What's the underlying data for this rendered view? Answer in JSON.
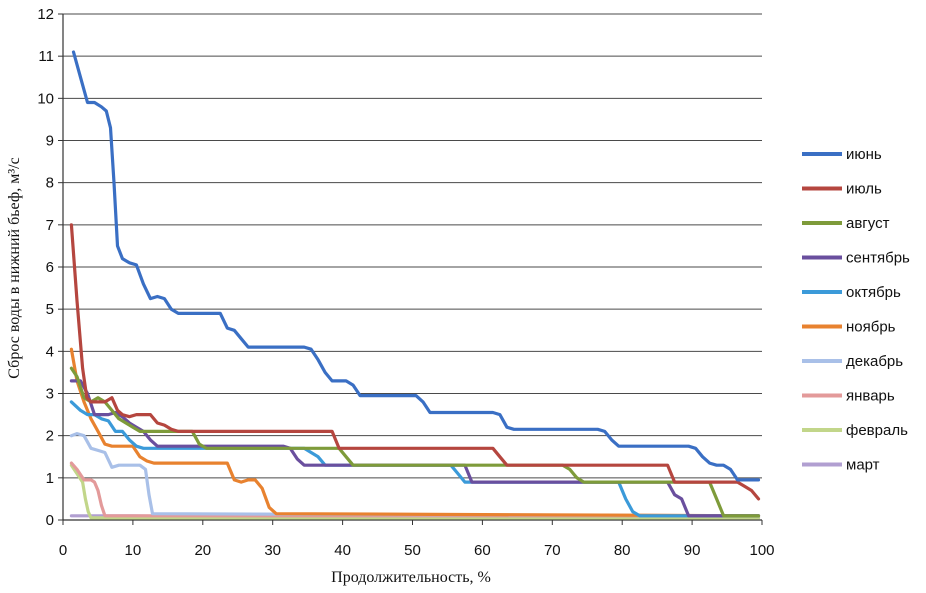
{
  "chart_data": {
    "type": "line",
    "xlabel": "Продолжительность, %",
    "ylabel": "Сброс воды в нижний бьеф, м³/с",
    "xlim": [
      0,
      100
    ],
    "ylim": [
      0,
      12
    ],
    "xticks": [
      0,
      10,
      20,
      30,
      40,
      50,
      60,
      70,
      80,
      90,
      100
    ],
    "yticks": [
      0,
      1,
      2,
      3,
      4,
      5,
      6,
      7,
      8,
      9,
      10,
      11,
      12
    ],
    "grid": "horizontal",
    "legend_position": "right",
    "series": [
      {
        "name": "июнь",
        "color": "#3a6fc4",
        "x": [
          1.5,
          2.5,
          3.5,
          4.5,
          5.5,
          6.2,
          6.8,
          7.3,
          7.8,
          8.5,
          9.5,
          10.5,
          11.5,
          12.5,
          13.5,
          14.5,
          15.5,
          16.5,
          17.5,
          18.5,
          19.5,
          20.5,
          21.5,
          22.5,
          23.5,
          24.5,
          25.5,
          26.5,
          27.5,
          28.5,
          31.5,
          33.5,
          34.5,
          35.5,
          36.5,
          37.5,
          38.5,
          39.5,
          40.5,
          41.5,
          42.5,
          43.5,
          44.5,
          45.5,
          49.5,
          50.5,
          51.5,
          52.5,
          53.5,
          61.5,
          62.5,
          63.5,
          64.5,
          65.5,
          75.5,
          76.5,
          77.5,
          78.5,
          79.5,
          89.5,
          90.5,
          91.5,
          92.5,
          93.5,
          94.5,
          95.5,
          96.5,
          99.5
        ],
        "values": [
          11.1,
          10.5,
          9.9,
          9.9,
          9.8,
          9.7,
          9.3,
          8.0,
          6.5,
          6.2,
          6.1,
          6.05,
          5.6,
          5.25,
          5.3,
          5.25,
          5.0,
          4.9,
          4.9,
          4.9,
          4.9,
          4.9,
          4.9,
          4.9,
          4.55,
          4.5,
          4.3,
          4.1,
          4.1,
          4.1,
          4.1,
          4.1,
          4.1,
          4.05,
          3.8,
          3.5,
          3.3,
          3.3,
          3.3,
          3.2,
          2.95,
          2.95,
          2.95,
          2.95,
          2.95,
          2.95,
          2.8,
          2.55,
          2.55,
          2.55,
          2.5,
          2.2,
          2.15,
          2.15,
          2.15,
          2.15,
          2.1,
          1.9,
          1.75,
          1.75,
          1.7,
          1.5,
          1.35,
          1.3,
          1.3,
          1.2,
          0.95,
          0.95
        ]
      },
      {
        "name": "июль",
        "color": "#b5463f",
        "x": [
          1.2,
          2,
          2.8,
          3.4,
          4,
          5,
          6,
          7,
          7.8,
          8.5,
          9.5,
          10.5,
          12.5,
          13.5,
          14.5,
          15.5,
          16.5,
          17.5,
          18.5,
          19.5,
          35.5,
          36.5,
          37.5,
          38.5,
          39.5,
          61.5,
          62.5,
          63.5,
          64.5,
          65.5,
          85.5,
          86.5,
          87.5,
          88.5,
          96.5,
          97.5,
          98.5,
          99.5
        ],
        "values": [
          7.0,
          5.2,
          3.6,
          2.9,
          2.8,
          2.8,
          2.8,
          2.9,
          2.6,
          2.5,
          2.45,
          2.5,
          2.5,
          2.3,
          2.25,
          2.15,
          2.1,
          2.1,
          2.1,
          2.1,
          2.1,
          2.1,
          2.1,
          2.1,
          1.7,
          1.7,
          1.5,
          1.3,
          1.3,
          1.3,
          1.3,
          1.3,
          0.9,
          0.9,
          0.9,
          0.8,
          0.7,
          0.5
        ]
      },
      {
        "name": "август",
        "color": "#7e9b3a",
        "x": [
          1.2,
          2,
          3,
          4,
          5,
          6,
          7,
          8,
          9,
          10,
          11,
          12,
          18.5,
          19.5,
          20.5,
          39.5,
          40.5,
          41.5,
          42.5,
          71.5,
          72.5,
          73.5,
          74.5,
          75.5,
          92.5,
          93.5,
          94.5,
          99.5
        ],
        "values": [
          3.6,
          3.4,
          2.9,
          2.8,
          2.9,
          2.8,
          2.6,
          2.4,
          2.3,
          2.2,
          2.1,
          2.1,
          2.1,
          1.8,
          1.7,
          1.7,
          1.5,
          1.3,
          1.3,
          1.3,
          1.2,
          1.0,
          0.9,
          0.9,
          0.9,
          0.5,
          0.1,
          0.1
        ]
      },
      {
        "name": "сентябрь",
        "color": "#6a4f9e",
        "x": [
          1.2,
          2.5,
          3.5,
          4.5,
          5.5,
          6.5,
          7.5,
          8.5,
          9.5,
          10.5,
          11.5,
          12.5,
          13.5,
          31.5,
          32.5,
          33.5,
          34.5,
          56.5,
          57.5,
          58.5,
          86.5,
          87.5,
          88.5,
          89.5,
          99.5
        ],
        "values": [
          3.3,
          3.3,
          3.0,
          2.5,
          2.5,
          2.5,
          2.55,
          2.45,
          2.3,
          2.2,
          2.1,
          1.9,
          1.75,
          1.75,
          1.7,
          1.45,
          1.3,
          1.3,
          1.3,
          0.9,
          0.9,
          0.6,
          0.5,
          0.1,
          0.1
        ]
      },
      {
        "name": "октябрь",
        "color": "#3b9ad9",
        "x": [
          1.2,
          2.5,
          3.5,
          4.5,
          5.5,
          6.5,
          7.5,
          8.5,
          9.5,
          10.5,
          11.5,
          34.5,
          35.5,
          36.5,
          37.5,
          55.5,
          56.5,
          57.5,
          58.5,
          79.5,
          80.5,
          81.5,
          82.5,
          99.5
        ],
        "values": [
          2.8,
          2.6,
          2.5,
          2.5,
          2.4,
          2.35,
          2.1,
          2.1,
          1.9,
          1.75,
          1.7,
          1.7,
          1.6,
          1.5,
          1.3,
          1.3,
          1.1,
          0.9,
          0.9,
          0.9,
          0.5,
          0.2,
          0.1,
          0.1
        ]
      },
      {
        "name": "ноябрь",
        "color": "#e8822f",
        "x": [
          1.2,
          2,
          3,
          4,
          5,
          6,
          7,
          8,
          9,
          10,
          11,
          12,
          13,
          14,
          23.5,
          24.5,
          25.5,
          26.5,
          27.5,
          28.5,
          29.5,
          30.5,
          99.5
        ],
        "values": [
          4.05,
          3.3,
          2.8,
          2.4,
          2.1,
          1.8,
          1.75,
          1.75,
          1.75,
          1.75,
          1.5,
          1.4,
          1.35,
          1.35,
          1.35,
          0.95,
          0.9,
          0.95,
          0.95,
          0.75,
          0.3,
          0.15,
          0.1
        ]
      },
      {
        "name": "декабрь",
        "color": "#a9c0e8",
        "x": [
          1.2,
          2,
          3,
          4,
          5,
          6,
          7,
          8,
          9,
          10,
          11,
          11.8,
          12.3,
          12.8,
          99.5
        ],
        "values": [
          2.0,
          2.05,
          2.0,
          1.7,
          1.65,
          1.6,
          1.25,
          1.3,
          1.3,
          1.3,
          1.3,
          1.2,
          0.6,
          0.15,
          0.1
        ]
      },
      {
        "name": "январь",
        "color": "#e39a9a",
        "x": [
          1.2,
          2,
          3,
          4,
          4.5,
          5,
          5.5,
          6,
          99.5
        ],
        "values": [
          1.35,
          1.2,
          0.95,
          0.95,
          0.9,
          0.7,
          0.35,
          0.1,
          0.1
        ]
      },
      {
        "name": "февраль",
        "color": "#c2d68a",
        "x": [
          1.2,
          2,
          2.8,
          3.2,
          3.6,
          4,
          99.5
        ],
        "values": [
          1.3,
          1.1,
          0.9,
          0.5,
          0.2,
          0.05,
          0.05
        ]
      },
      {
        "name": "март",
        "color": "#b19fd1",
        "x": [
          1.2,
          10,
          20,
          40,
          60,
          80,
          99.5
        ],
        "values": [
          0.1,
          0.1,
          0.08,
          0.08,
          0.06,
          0.05,
          0.05
        ]
      }
    ]
  }
}
